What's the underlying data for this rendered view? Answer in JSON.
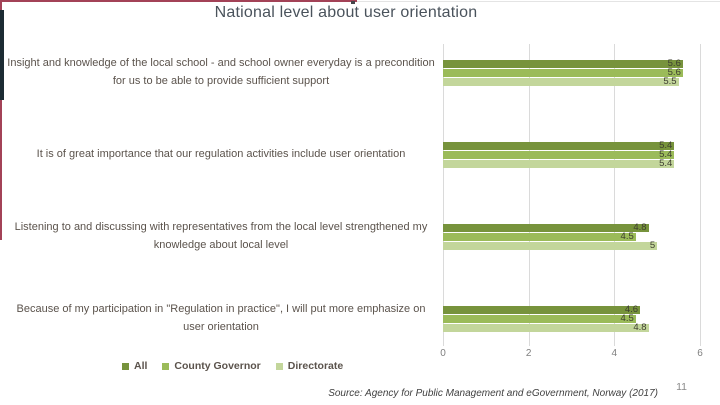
{
  "slide": {
    "title": "National level about user orientation",
    "source": "Source: Agency for Public Management and eGovernment, Norway (2017)",
    "page_number": "11"
  },
  "colors": {
    "accent_border": "#A34257",
    "navy_strip": "#1C2B33",
    "grid": "#DADADA",
    "title_text": "#4A535C",
    "category_text": "#5B534C",
    "value_label_text": "#3E3E30",
    "axis_text": "#7F7F7F"
  },
  "chart_data": {
    "type": "bar",
    "orientation": "horizontal",
    "title": "National level about user orientation",
    "categories": [
      "Insight and knowledge of the local school - and school owner everyday is a precondition for us to be able to provide sufficient support",
      "It is of great importance that our regulation activities include user orientation",
      "Listening to and discussing with representatives from the local level strengthened my knowledge about local level",
      "Because of my participation in \"Regulation in practice\", I will put more emphasize on user orientation"
    ],
    "series": [
      {
        "name": "All",
        "color": "#77933C",
        "values": [
          5.6,
          5.4,
          4.8,
          4.6
        ],
        "labels": [
          "5.6",
          "5.4",
          "4.8",
          "4.6"
        ]
      },
      {
        "name": "County Governor",
        "color": "#9BBB59",
        "values": [
          5.6,
          5.4,
          4.5,
          4.5
        ],
        "labels": [
          "5.6",
          "5.4",
          "4.5",
          "4.5"
        ]
      },
      {
        "name": "Directorate",
        "color": "#C3D69B",
        "values": [
          5.5,
          5.4,
          5.0,
          4.8
        ],
        "labels": [
          "5.5",
          "5.4",
          "5",
          "4.8"
        ]
      }
    ],
    "xlim": [
      0,
      6
    ],
    "x_ticks": [
      0,
      2,
      4,
      6
    ],
    "grid": true,
    "legend_position": "bottom-left"
  }
}
